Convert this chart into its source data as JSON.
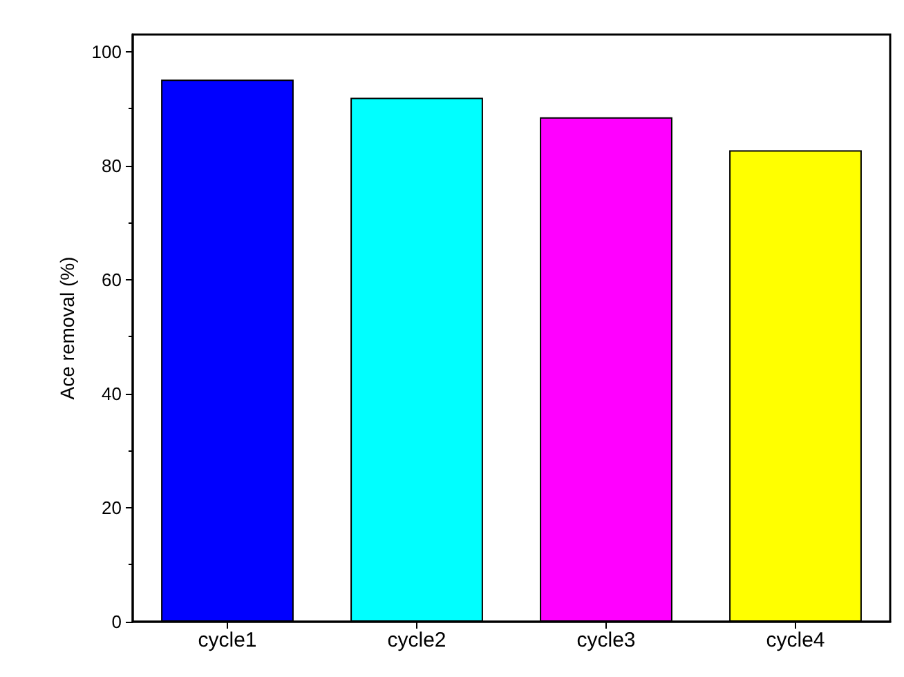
{
  "chart_data": {
    "type": "bar",
    "ylabel": "Ace removal (%)",
    "categories": [
      "cycle1",
      "cycle2",
      "cycle3",
      "cycle4"
    ],
    "values": [
      95.1,
      91.9,
      88.5,
      82.7
    ],
    "colors": [
      "#0000ff",
      "#00ffff",
      "#ff00ff",
      "#ffff00"
    ],
    "ylim": [
      0,
      103
    ],
    "yticks": [
      0,
      20,
      40,
      60,
      80,
      100
    ],
    "grid": false
  }
}
